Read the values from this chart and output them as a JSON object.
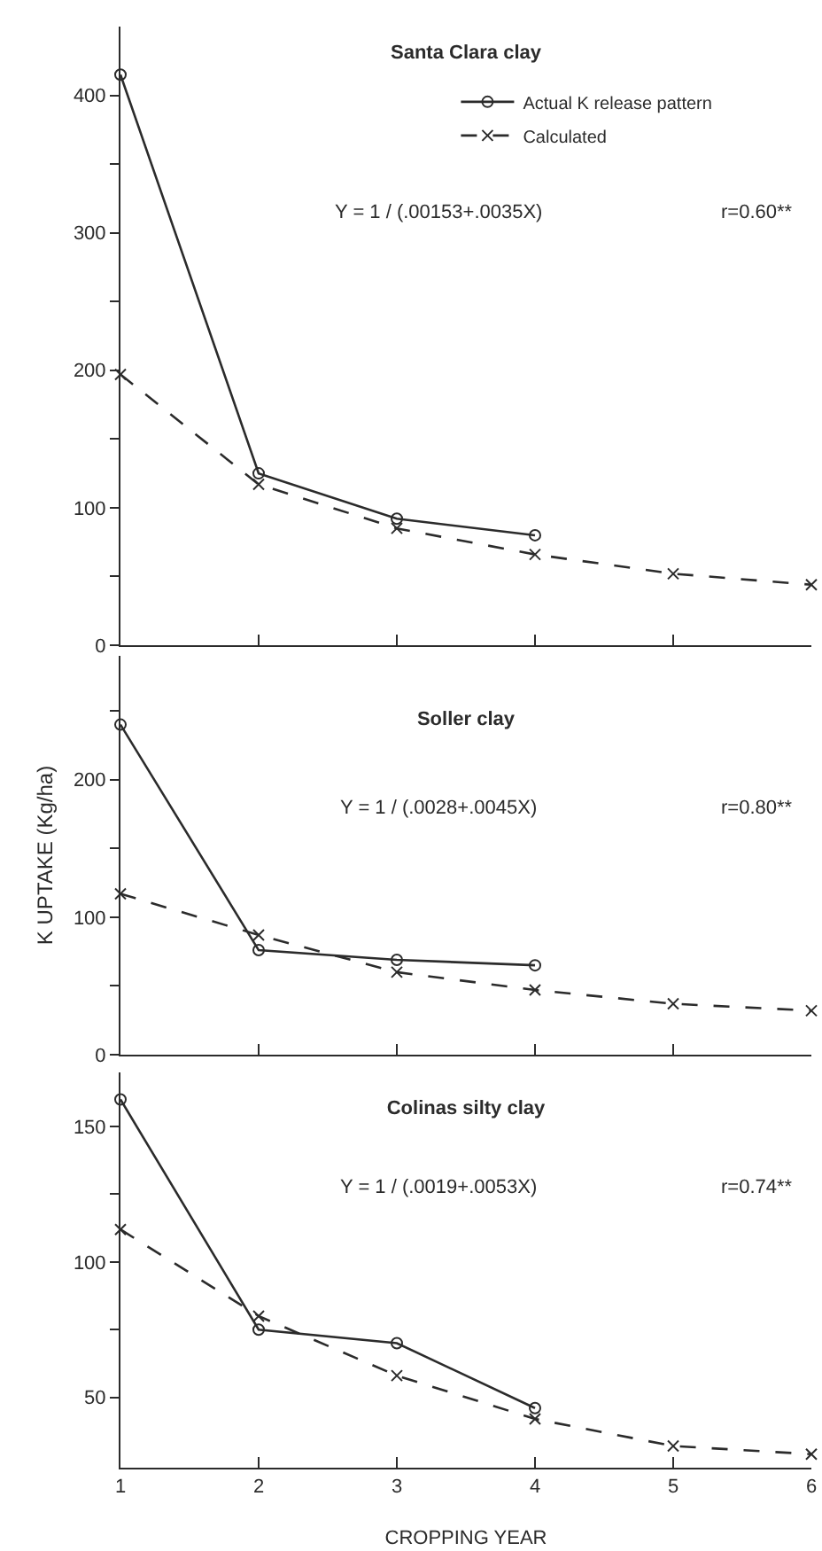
{
  "chart_data": [
    {
      "type": "line",
      "title": "Santa Clara clay",
      "x": [
        1,
        2,
        3,
        4,
        5,
        6
      ],
      "series": [
        {
          "name": "Actual K release pattern",
          "color": "#2b2b2b",
          "marker": "circle",
          "line_style": "solid",
          "values": [
            415,
            125,
            92,
            80,
            null,
            null
          ]
        },
        {
          "name": "Calculated",
          "color": "#2b2b2b",
          "marker": "cross",
          "line_style": "dashed",
          "values": [
            197,
            117,
            85,
            66,
            52,
            44
          ]
        }
      ],
      "xlim": [
        1,
        6
      ],
      "xticks": [
        {
          "value": 1,
          "label": null
        },
        {
          "value": 2,
          "label": null
        },
        {
          "value": 3,
          "label": null
        },
        {
          "value": 4,
          "label": null
        },
        {
          "value": 5,
          "label": null
        },
        {
          "value": 6,
          "label": null
        }
      ],
      "ylim": [
        0,
        450
      ],
      "yticks": [
        0,
        {
          "value": 50,
          "label": null
        },
        100,
        {
          "value": 150,
          "label": null
        },
        200,
        {
          "value": 250,
          "label": null
        },
        300,
        {
          "value": 350,
          "label": null
        },
        400
      ],
      "tick_labels": "y",
      "legend": "top right",
      "annotations": [
        "Y = 1 / (.00153+.0035X)",
        "r=0.60**"
      ]
    },
    {
      "type": "line",
      "title": "Soller clay",
      "ylabel": "K UPTAKE (Kg/ha)",
      "x": [
        1,
        2,
        3,
        4,
        5,
        6
      ],
      "series": [
        {
          "color": "#2b2b2b",
          "marker": "circle",
          "line_style": "solid",
          "values": [
            240,
            76,
            69,
            65,
            null,
            null
          ]
        },
        {
          "color": "#2b2b2b",
          "marker": "cross",
          "line_style": "dashed",
          "values": [
            117,
            87,
            60,
            47,
            37,
            32
          ]
        }
      ],
      "xlim": [
        1,
        6
      ],
      "xticks": [
        {
          "value": 1,
          "label": null
        },
        {
          "value": 2,
          "label": null
        },
        {
          "value": 3,
          "label": null
        },
        {
          "value": 4,
          "label": null
        },
        {
          "value": 5,
          "label": null
        },
        {
          "value": 6,
          "label": null
        }
      ],
      "ylim": [
        0,
        290
      ],
      "yticks": [
        0,
        {
          "value": 50,
          "label": null
        },
        100,
        {
          "value": 150,
          "label": null
        },
        200,
        {
          "value": 250,
          "label": null
        }
      ],
      "tick_labels": "y",
      "annotations": [
        "Y = 1 / (.0028+.0045X)",
        "r=0.80**"
      ]
    },
    {
      "type": "line",
      "title": "Colinas silty clay",
      "xlabel": "CROPPING YEAR",
      "x": [
        1,
        2,
        3,
        4,
        5,
        6
      ],
      "series": [
        {
          "color": "#2b2b2b",
          "marker": "circle",
          "line_style": "solid",
          "values": [
            160,
            75,
            70,
            46,
            null,
            null
          ]
        },
        {
          "color": "#2b2b2b",
          "marker": "cross",
          "line_style": "dashed",
          "values": [
            112,
            80,
            58,
            42,
            32,
            29
          ]
        }
      ],
      "xlim": [
        1,
        6
      ],
      "xticks": [
        1,
        2,
        3,
        4,
        5,
        6
      ],
      "ylim": [
        24,
        170
      ],
      "yticks": [
        50,
        {
          "value": 75,
          "label": null
        },
        100,
        {
          "value": 125,
          "label": null
        },
        150
      ],
      "annotations": [
        "Y = 1 / (.0019+.0053X)",
        "r=0.74**"
      ]
    }
  ]
}
